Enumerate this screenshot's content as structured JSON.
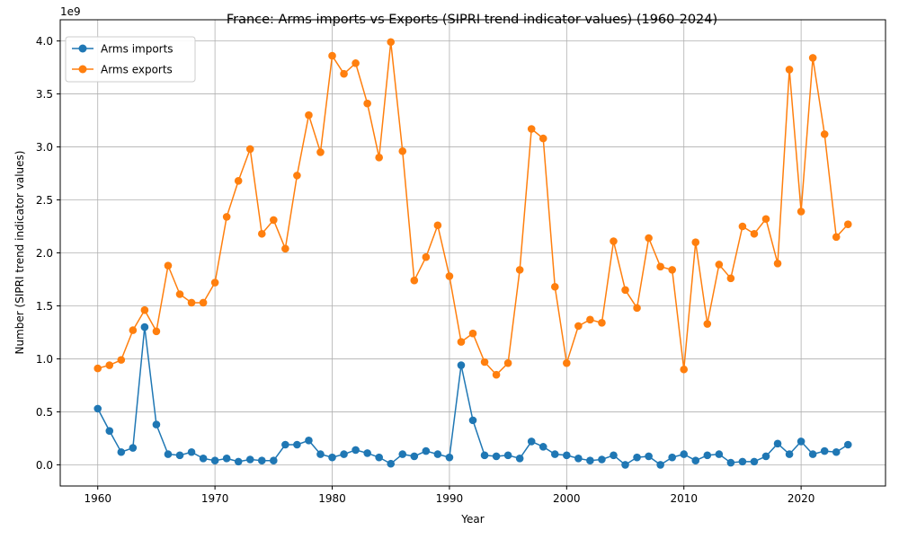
{
  "chart_data": {
    "type": "line",
    "title": "France: Arms imports vs Exports (SIPRI trend indicator values) (1960-2024)",
    "xlabel": "Year",
    "ylabel": "Number (SIPRI trend indicator values)",
    "y_offset_text": "1e9",
    "xlim": [
      1956.8,
      2027.2
    ],
    "ylim": [
      -0.2,
      4.2
    ],
    "x_ticks": [
      1960,
      1970,
      1980,
      1990,
      2000,
      2010,
      2020
    ],
    "x_tick_labels": [
      "1960",
      "1970",
      "1980",
      "1990",
      "2000",
      "2010",
      "2020"
    ],
    "y_ticks": [
      0,
      0.5,
      1,
      1.5,
      2,
      2.5,
      3,
      3.5,
      4
    ],
    "y_tick_labels": [
      "0.0",
      "0.5",
      "1.0",
      "1.5",
      "2.0",
      "2.5",
      "3.0",
      "3.5",
      "4.0"
    ],
    "grid": true,
    "legend_position": "top-left",
    "colors": {
      "imports": "#1f77b4",
      "exports": "#ff7f0e"
    },
    "x": [
      1960,
      1961,
      1962,
      1963,
      1964,
      1965,
      1966,
      1967,
      1968,
      1969,
      1970,
      1971,
      1972,
      1973,
      1974,
      1975,
      1976,
      1977,
      1978,
      1979,
      1980,
      1981,
      1982,
      1983,
      1984,
      1985,
      1986,
      1987,
      1988,
      1989,
      1990,
      1991,
      1992,
      1993,
      1994,
      1995,
      1996,
      1997,
      1998,
      1999,
      2000,
      2001,
      2002,
      2003,
      2004,
      2005,
      2006,
      2007,
      2008,
      2009,
      2010,
      2011,
      2012,
      2013,
      2014,
      2015,
      2016,
      2017,
      2018,
      2019,
      2020,
      2021,
      2022,
      2023,
      2024
    ],
    "series": [
      {
        "name": "Arms imports",
        "color": "#1f77b4",
        "values": [
          0.53,
          0.32,
          0.12,
          0.16,
          1.3,
          0.38,
          0.1,
          0.09,
          0.12,
          0.06,
          0.04,
          0.06,
          0.03,
          0.05,
          0.04,
          0.04,
          0.19,
          0.19,
          0.23,
          0.1,
          0.07,
          0.1,
          0.14,
          0.11,
          0.07,
          0.01,
          0.1,
          0.08,
          0.13,
          0.1,
          0.07,
          0.94,
          0.42,
          0.09,
          0.08,
          0.09,
          0.06,
          0.22,
          0.17,
          0.1,
          0.09,
          0.06,
          0.04,
          0.05,
          0.09,
          0.0,
          0.07,
          0.08,
          0.0,
          0.07,
          0.1,
          0.04,
          0.09,
          0.1,
          0.02,
          0.03,
          0.03,
          0.08,
          0.2,
          0.1,
          0.22,
          0.1,
          0.13,
          0.12,
          0.19
        ]
      },
      {
        "name": "Arms exports",
        "color": "#ff7f0e",
        "values": [
          0.91,
          0.94,
          0.99,
          1.27,
          1.46,
          1.26,
          1.88,
          1.61,
          1.53,
          1.53,
          1.72,
          2.34,
          2.68,
          2.98,
          2.18,
          2.31,
          2.04,
          2.73,
          3.3,
          2.95,
          3.86,
          3.69,
          3.79,
          3.41,
          2.9,
          3.99,
          2.96,
          1.74,
          1.96,
          2.26,
          1.78,
          1.16,
          1.24,
          0.97,
          0.85,
          0.96,
          1.84,
          3.17,
          3.08,
          1.68,
          0.96,
          1.31,
          1.37,
          1.34,
          2.11,
          1.65,
          1.48,
          2.14,
          1.87,
          1.84,
          0.9,
          2.1,
          1.33,
          1.89,
          1.76,
          2.25,
          2.18,
          2.32,
          1.9,
          3.73,
          2.39,
          3.84,
          3.12,
          2.15,
          2.27
        ]
      }
    ]
  }
}
